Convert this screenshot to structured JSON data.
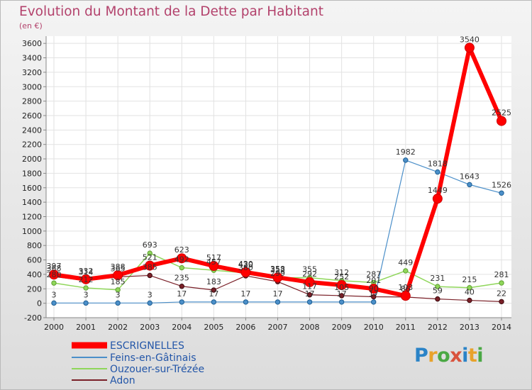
{
  "chart_data": {
    "type": "line",
    "title": "Evolution du Montant de la Dette par Habitant",
    "unit_label": "(en €)",
    "x": [
      "2000",
      "2001",
      "2002",
      "2003",
      "2004",
      "2005",
      "2006",
      "2007",
      "2008",
      "2009",
      "2010",
      "2011",
      "2012",
      "2013",
      "2014"
    ],
    "y_ticks": [
      -200,
      0,
      200,
      400,
      600,
      800,
      1000,
      1200,
      1400,
      1600,
      1800,
      2000,
      2200,
      2400,
      2600,
      2800,
      3000,
      3200,
      3400,
      3600
    ],
    "ylim": [
      -200,
      3700
    ],
    "grid": true,
    "legend_position": "bottom-left",
    "series": [
      {
        "name": "ESCRIGNELLES",
        "color": "#ff0000",
        "values": [
          397,
          332,
          388,
          521,
          623,
          517,
          430,
          358,
          292,
          252,
          201,
          103,
          1449,
          3540,
          2525
        ],
        "labels": [
          "397",
          "332",
          "388",
          "521",
          "623",
          "517",
          "430",
          "358",
          "292",
          "252",
          "201",
          "103",
          "1449",
          "3540",
          "2525"
        ]
      },
      {
        "name": "Feins-en-Gâtinais",
        "color": "#4b8fc9",
        "values": [
          3,
          3,
          3,
          3,
          17,
          17,
          17,
          17,
          17,
          17,
          17,
          1982,
          1818,
          1643,
          1526
        ],
        "labels": [
          "3",
          "3",
          "3",
          "3",
          "17",
          "17",
          "17",
          "17",
          "17",
          "17",
          "17",
          "1982",
          "1818",
          "1643",
          "1526"
        ]
      },
      {
        "name": "Ouzouer-sur-Trézée",
        "color": "#8fd65a",
        "values": [
          280,
          212,
          185,
          693,
          492,
          457,
          420,
          352,
          355,
          312,
          287,
          449,
          231,
          215,
          281
        ],
        "labels": [
          "280",
          "212",
          "185",
          "693",
          "492",
          "457",
          "420",
          "352",
          "355",
          "312",
          "287",
          "449",
          "231",
          "215",
          "281"
        ]
      },
      {
        "name": "Adon",
        "color": "#7a2028",
        "values": [
          368,
          314,
          365,
          385,
          235,
          183,
          380,
          299,
          117,
          105,
          90,
          86,
          59,
          40,
          22
        ],
        "labels": [
          "368",
          "314",
          "365",
          "385",
          "235",
          "183",
          "380",
          "299",
          "117",
          "105",
          "90",
          "86",
          "59",
          "40",
          "22"
        ]
      }
    ]
  },
  "logo": {
    "letters": [
      "P",
      "r",
      "o",
      "x",
      "i",
      "t",
      "i"
    ]
  }
}
